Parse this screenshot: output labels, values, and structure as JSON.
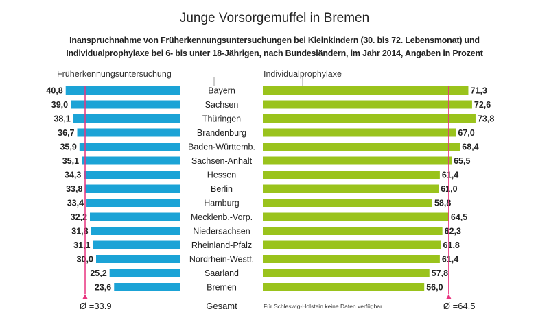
{
  "chart_data": {
    "type": "bar",
    "title": "Junge Vorsorgemuffel in Bremen",
    "subtitle": [
      "Inanspruchnahme von Früherkennungsuntersuchungen bei Kleinkindern (30. bis 72. Lebensmonat) und",
      "Individualprophylaxe bei 6- bis unter 18-Jährigen, nach Bundesländern, im Jahr 2014, Angaben in Prozent"
    ],
    "categories": [
      "Bayern",
      "Sachsen",
      "Thüringen",
      "Brandenburg",
      "Baden-Württemb.",
      "Sachsen-Anhalt",
      "Hessen",
      "Berlin",
      "Hamburg",
      "Mecklenb.-Vorp.",
      "Niedersachsen",
      "Rheinland-Pfalz",
      "Nordrhein-Westf.",
      "Saarland",
      "Bremen"
    ],
    "series": [
      {
        "name": "Früherkennungsuntersuchung",
        "color": "#1ba3d6",
        "values": [
          40.8,
          39.0,
          38.1,
          36.7,
          35.9,
          35.1,
          34.3,
          33.8,
          33.4,
          32.2,
          31.8,
          31.1,
          30.0,
          25.2,
          23.6
        ],
        "mean": 33.9,
        "mean_label": "Ø =33,9"
      },
      {
        "name": "Individualprophylaxe",
        "color": "#9ac31c",
        "values": [
          71.3,
          72.6,
          73.8,
          67.0,
          68.4,
          65.5,
          61.4,
          61.0,
          58.8,
          64.5,
          62.3,
          61.8,
          61.4,
          57.8,
          56.0
        ],
        "mean": 64.5,
        "mean_label": "Ø =64,5"
      }
    ],
    "total_label": "Gesamt",
    "note": "Für Schleswig-Holstein keine Daten verfügbar",
    "mean_line_color": "#e8337f"
  }
}
